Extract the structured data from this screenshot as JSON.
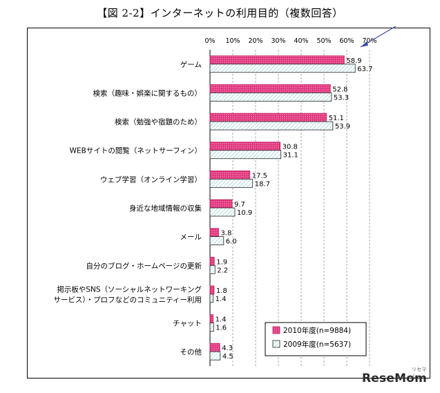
{
  "title": "【図 2-2】インターネットの利用目的（複数回答）",
  "chart_data": {
    "type": "bar",
    "orientation": "horizontal",
    "categories": [
      "ゲーム",
      "検索（趣味・娯楽に関するもの）",
      "検索（勉強や宿題のため）",
      "WEBサイトの閲覧（ネットサーフィン）",
      "ウェブ学習（オンライン学習）",
      "身近な地域情報の収集",
      "メール",
      "自分のブログ・ホームページの更新",
      "掲示板やSNS（ソーシャルネットワーキングサービス）・プロフなどのコミュニティー利用",
      "チャット",
      "その他"
    ],
    "category_lines": [
      [
        "ゲーム"
      ],
      [
        "検索（趣味・娯楽に関するもの）"
      ],
      [
        "検索（勉強や宿題のため）"
      ],
      [
        "WEBサイトの閲覧（ネットサーフィン）"
      ],
      [
        "ウェブ学習（オンライン学習）"
      ],
      [
        "身近な地域情報の収集"
      ],
      [
        "メール"
      ],
      [
        "自分のブログ・ホームページの更新"
      ],
      [
        "掲示板やSNS（ソーシャルネットワーキング",
        "サービス）・プロフなどのコミュニティー利用"
      ],
      [
        "チャット"
      ],
      [
        "その他"
      ]
    ],
    "series": [
      {
        "name": "2010年度(n=9884)",
        "color": "#e0307a",
        "pattern": "dots",
        "values": [
          58.9,
          52.8,
          51.1,
          30.8,
          17.5,
          9.7,
          3.8,
          1.9,
          1.8,
          1.4,
          4.3
        ],
        "labels": [
          "58.9",
          "52.8",
          "51.1",
          "30.8",
          "17.5",
          "9.7",
          "3.8",
          "1.9",
          "1.8",
          "1.4",
          "4.3"
        ]
      },
      {
        "name": "2009年度(n=5637)",
        "color": "#3aa0a8",
        "pattern": "diagonal",
        "values": [
          63.7,
          53.3,
          53.9,
          31.1,
          18.7,
          10.9,
          6.0,
          2.2,
          1.4,
          1.6,
          4.5
        ],
        "labels": [
          "63.7",
          "53.3",
          "53.9",
          "31.1",
          "18.7",
          "10.9",
          "6.0",
          "2.2",
          "1.4",
          "1.6",
          "4.5"
        ]
      }
    ],
    "x_ticks": [
      "0%",
      "10%",
      "20%",
      "30%",
      "40%",
      "50%",
      "60%",
      "70%"
    ],
    "xlim": [
      0,
      70
    ],
    "grid": "vertical dashed",
    "legend_position": "bottom-right",
    "axis_position": "top"
  },
  "logo_text": "ReseMom",
  "logo_sub": "リセマム"
}
